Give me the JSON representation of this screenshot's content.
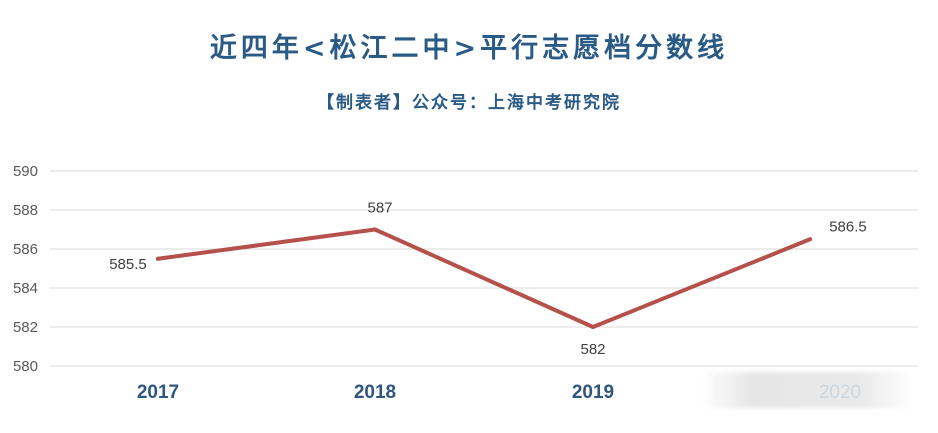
{
  "chart_data": {
    "type": "line",
    "title": "近四年<松江二中>平行志愿档分数线",
    "subtitle": "【制表者】公众号：上海中考研究院",
    "categories": [
      "2017",
      "2018",
      "2019",
      "2020"
    ],
    "series": [
      {
        "values": [
          585.5,
          587,
          582,
          586.5
        ],
        "color": "#b5504a"
      }
    ],
    "data_labels": [
      "585.5",
      "587",
      "582",
      "586.5"
    ],
    "y_ticks": [
      "580",
      "582",
      "584",
      "586",
      "588",
      "590"
    ],
    "ylim": [
      580,
      590
    ],
    "grid": true,
    "legend": "none"
  },
  "colors": {
    "title": "#2a5a86",
    "category_label": "#2e5680",
    "highlight_category": "#3b84c4",
    "line": "#b5504a",
    "grid": "#d9d9d9"
  }
}
